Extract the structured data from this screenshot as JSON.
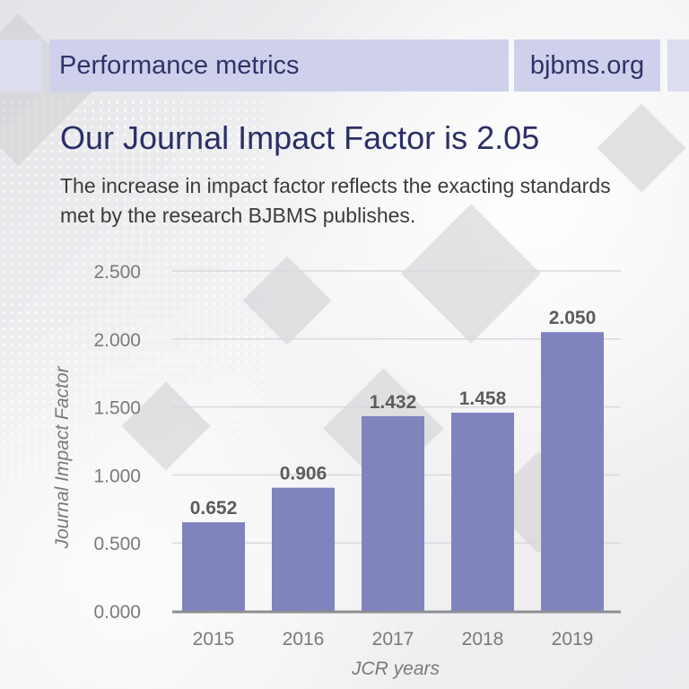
{
  "header": {
    "section_title": "Performance metrics",
    "site": "bjbms.org"
  },
  "headline": "Our Journal Impact Factor is 2.05",
  "subheadline": "The increase in impact factor reflects the exacting standards met by the research BJBMS publishes.",
  "colors": {
    "bar": "#7f84bf",
    "header_band": "#cfd1ec",
    "header_text": "#2e3468",
    "headline_text": "#2a2f66",
    "axis_text": "#7a7a7a",
    "data_label": "#5c5c5c"
  },
  "chart_data": {
    "type": "bar",
    "categories": [
      "2015",
      "2016",
      "2017",
      "2018",
      "2019"
    ],
    "values": [
      0.652,
      0.906,
      1.432,
      1.458,
      2.05
    ],
    "value_labels": [
      "0.652",
      "0.906",
      "1.432",
      "1.458",
      "2.050"
    ],
    "xlabel": "JCR years",
    "ylabel": "Journal Impact Factor",
    "ylim": [
      0,
      2.5
    ],
    "yticks": [
      0,
      0.5,
      1,
      1.5,
      2,
      2.5
    ],
    "ytick_labels": [
      "0.000",
      "0.500",
      "1.000",
      "1.500",
      "2.000",
      "2.500"
    ],
    "grid": true,
    "legend": "none"
  }
}
